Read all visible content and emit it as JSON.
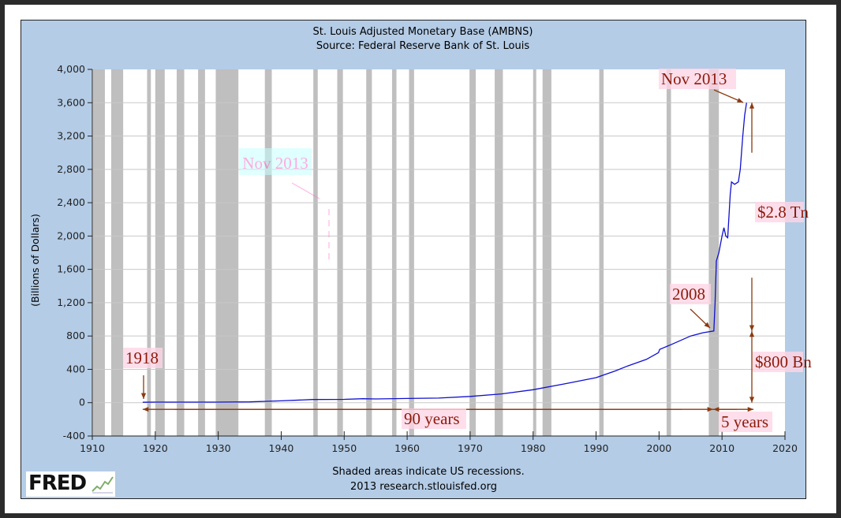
{
  "chart_data": {
    "type": "line",
    "title": "St. Louis Adjusted Monetary Base (AMBNS)",
    "subtitle": "Source: Federal Reserve Bank of St. Louis",
    "ylabel": "(Billions of Dollars)",
    "xlabel": "",
    "xlim": [
      1910,
      2020
    ],
    "ylim": [
      -400,
      4000
    ],
    "grid": true,
    "x_ticks": [
      "1910",
      "1920",
      "1930",
      "1940",
      "1950",
      "1960",
      "1970",
      "1980",
      "1990",
      "2000",
      "2010",
      "2020"
    ],
    "y_ticks": [
      "4,000",
      "3,600",
      "3,200",
      "2,800",
      "2,400",
      "2,000",
      "1,600",
      "1,200",
      "800",
      "400",
      "0",
      "-400"
    ],
    "series_color": "#1010d0",
    "recession_color": "#bfbfbf",
    "recessions": [
      [
        1910.1,
        1912.0
      ],
      [
        1913.0,
        1914.9
      ],
      [
        1918.7,
        1919.3
      ],
      [
        1920.0,
        1921.5
      ],
      [
        1923.4,
        1924.6
      ],
      [
        1926.8,
        1927.9
      ],
      [
        1929.6,
        1933.2
      ],
      [
        1937.4,
        1938.5
      ],
      [
        1945.1,
        1945.8
      ],
      [
        1948.9,
        1949.8
      ],
      [
        1953.5,
        1954.4
      ],
      [
        1957.6,
        1958.3
      ],
      [
        1960.3,
        1961.1
      ],
      [
        1969.9,
        1970.9
      ],
      [
        1973.9,
        1975.2
      ],
      [
        1980.0,
        1980.5
      ],
      [
        1981.5,
        1982.9
      ],
      [
        1990.5,
        1991.2
      ],
      [
        2001.2,
        2001.9
      ],
      [
        2007.9,
        2009.5
      ]
    ],
    "series": [
      {
        "x": [
          1918,
          1920,
          1925,
          1930,
          1935,
          1940,
          1945,
          1950,
          1953,
          1955,
          1960,
          1965,
          1970,
          1975,
          1980,
          1985,
          1990,
          1993,
          1995,
          1998,
          1999.9,
          2000.1,
          2002,
          2005,
          2007,
          2008.7,
          2008.9,
          2009.1,
          2009.5,
          2010,
          2010.3,
          2010.6,
          2010.9,
          2011.3,
          2011.5,
          2012,
          2012.6,
          2012.9,
          2013.3,
          2013.6,
          2013.9
        ],
        "y": [
          5,
          7,
          7,
          7,
          10,
          22,
          38,
          40,
          48,
          45,
          50,
          55,
          75,
          105,
          155,
          225,
          300,
          380,
          440,
          520,
          600,
          640,
          700,
          800,
          840,
          860,
          1200,
          1700,
          1800,
          2000,
          2100,
          2000,
          1980,
          2500,
          2650,
          2620,
          2650,
          2800,
          3200,
          3450,
          3600
        ]
      }
    ],
    "annotations": {
      "start_label": "1918",
      "crisis_label": "2008",
      "end_label": "Nov 2013",
      "span_label": "90 years",
      "recent_span_label": "5 years",
      "increase_label": "$2.8 Tn",
      "pre_crisis_label": "$800 Bn",
      "ghost_label": "Nov 2013"
    },
    "footnote": "Shaded areas indicate US recessions.",
    "credit": "2013 research.stlouisfed.org",
    "logo": "FRED"
  }
}
